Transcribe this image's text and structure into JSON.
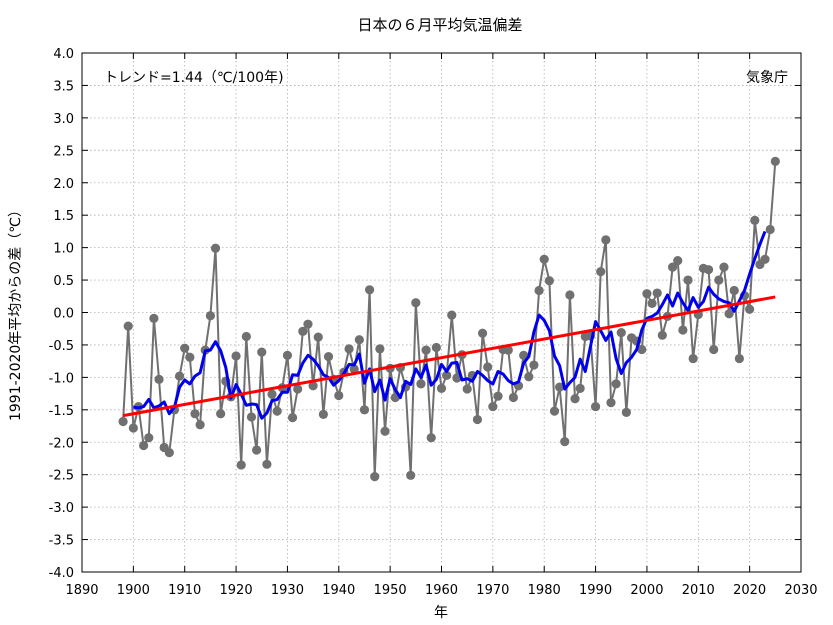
{
  "chart_data": {
    "type": "line",
    "title": "日本の６月平均気温偏差",
    "xlabel": "年",
    "ylabel": "1991-2020年平均からの差（℃）",
    "trend_label": "トレンド=1.44（℃/100年)",
    "source_label": "気象庁",
    "xlim": [
      1890,
      2030
    ],
    "ylim": [
      -4.0,
      4.0
    ],
    "x_ticks": [
      1890,
      1900,
      1910,
      1920,
      1930,
      1940,
      1950,
      1960,
      1970,
      1980,
      1990,
      2000,
      2010,
      2020,
      2030
    ],
    "y_ticks": [
      -4.0,
      -3.5,
      -3.0,
      -2.5,
      -2.0,
      -1.5,
      -1.0,
      -0.5,
      0.0,
      0.5,
      1.0,
      1.5,
      2.0,
      2.5,
      3.0,
      3.5,
      4.0
    ],
    "grid": true,
    "colors": {
      "annual": "#707070",
      "moving_average": "#0000ee",
      "trend": "#ff0000",
      "grid": "#b0b0b0"
    },
    "series": [
      {
        "kind": "annual",
        "x": [
          1898,
          1899,
          1900,
          1901,
          1902,
          1903,
          1904,
          1905,
          1906,
          1907,
          1908,
          1909,
          1910,
          1911,
          1912,
          1913,
          1914,
          1915,
          1916,
          1917,
          1918,
          1919,
          1920,
          1921,
          1922,
          1923,
          1924,
          1925,
          1926,
          1927,
          1928,
          1929,
          1930,
          1931,
          1932,
          1933,
          1934,
          1935,
          1936,
          1937,
          1938,
          1939,
          1940,
          1941,
          1942,
          1943,
          1944,
          1945,
          1946,
          1947,
          1948,
          1949,
          1950,
          1951,
          1952,
          1953,
          1954,
          1955,
          1956,
          1957,
          1958,
          1959,
          1960,
          1961,
          1962,
          1963,
          1964,
          1965,
          1966,
          1967,
          1968,
          1969,
          1970,
          1971,
          1972,
          1973,
          1974,
          1975,
          1976,
          1977,
          1978,
          1979,
          1980,
          1981,
          1982,
          1983,
          1984,
          1985,
          1986,
          1987,
          1988,
          1989,
          1990,
          1991,
          1992,
          1993,
          1994,
          1995,
          1996,
          1997,
          1998,
          1999,
          2000,
          2001,
          2002,
          2003,
          2004,
          2005,
          2006,
          2007,
          2008,
          2009,
          2010,
          2011,
          2012,
          2013,
          2014,
          2015,
          2016,
          2017,
          2018,
          2019,
          2020,
          2021,
          2022,
          2023,
          2024,
          2025
        ],
        "y": [
          -1.68,
          -0.21,
          -1.78,
          -1.45,
          -2.05,
          -1.93,
          -0.09,
          -1.03,
          -2.08,
          -2.16,
          -1.5,
          -0.98,
          -0.55,
          -0.69,
          -1.56,
          -1.73,
          -0.58,
          -0.05,
          0.99,
          -1.56,
          -1.06,
          -1.3,
          -0.67,
          -2.35,
          -0.37,
          -1.61,
          -2.12,
          -0.61,
          -2.34,
          -1.26,
          -1.52,
          -1.16,
          -0.66,
          -1.62,
          -1.18,
          -0.29,
          -0.18,
          -1.13,
          -0.38,
          -1.57,
          -0.68,
          -1.03,
          -1.28,
          -0.92,
          -0.56,
          -0.87,
          -0.42,
          -1.5,
          0.35,
          -2.53,
          -0.56,
          -1.83,
          -0.86,
          -1.31,
          -0.85,
          -1.15,
          -2.51,
          0.15,
          -1.1,
          -0.58,
          -1.93,
          -0.54,
          -1.17,
          -0.97,
          -0.04,
          -1.01,
          -0.65,
          -1.18,
          -0.97,
          -1.65,
          -0.32,
          -0.84,
          -1.45,
          -1.29,
          -0.57,
          -0.58,
          -1.31,
          -1.13,
          -0.66,
          -0.99,
          -0.81,
          0.34,
          0.82,
          0.49,
          -1.52,
          -1.15,
          -1.99,
          0.27,
          -1.33,
          -1.17,
          -0.37,
          -0.36,
          -1.45,
          0.63,
          1.12,
          -1.39,
          -1.1,
          -0.31,
          -1.54,
          -0.39,
          -0.44,
          -0.57,
          0.29,
          0.14,
          0.3,
          -0.35,
          -0.06,
          0.7,
          0.8,
          -0.27,
          0.5,
          -0.71,
          -0.03,
          0.68,
          0.66,
          -0.57,
          0.5,
          0.7,
          -0.02,
          0.34,
          -0.71,
          0.26,
          0.05,
          1.42,
          0.74,
          0.82,
          1.28,
          2.33
        ]
      },
      {
        "kind": "moving_average",
        "x": [
          1900,
          1901,
          1902,
          1903,
          1904,
          1905,
          1906,
          1907,
          1908,
          1909,
          1910,
          1911,
          1912,
          1913,
          1914,
          1915,
          1916,
          1917,
          1918,
          1919,
          1920,
          1921,
          1922,
          1923,
          1924,
          1925,
          1926,
          1927,
          1928,
          1929,
          1930,
          1931,
          1932,
          1933,
          1934,
          1935,
          1936,
          1937,
          1938,
          1939,
          1940,
          1941,
          1942,
          1943,
          1944,
          1945,
          1946,
          1947,
          1948,
          1949,
          1950,
          1951,
          1952,
          1953,
          1954,
          1955,
          1956,
          1957,
          1958,
          1959,
          1960,
          1961,
          1962,
          1963,
          1964,
          1965,
          1966,
          1967,
          1968,
          1969,
          1970,
          1971,
          1972,
          1973,
          1974,
          1975,
          1976,
          1977,
          1978,
          1979,
          1980,
          1981,
          1982,
          1983,
          1984,
          1985,
          1986,
          1987,
          1988,
          1989,
          1990,
          1991,
          1992,
          1993,
          1994,
          1995,
          1996,
          1997,
          1998,
          1999,
          2000,
          2001,
          2002,
          2003,
          2004,
          2005,
          2006,
          2007,
          2008,
          2009,
          2010,
          2011,
          2012,
          2013,
          2014,
          2015,
          2016,
          2017,
          2018,
          2019,
          2020,
          2021,
          2022,
          2023
        ],
        "y": [
          -1.46,
          -1.47,
          -1.45,
          -1.34,
          -1.47,
          -1.44,
          -1.38,
          -1.56,
          -1.46,
          -1.15,
          -1.04,
          -1.1,
          -0.98,
          -0.93,
          -0.59,
          -0.58,
          -0.45,
          -0.59,
          -0.85,
          -1.32,
          -1.11,
          -1.26,
          -1.43,
          -1.41,
          -1.42,
          -1.63,
          -1.55,
          -1.36,
          -1.34,
          -1.23,
          -1.23,
          -0.96,
          -0.97,
          -0.78,
          -0.66,
          -0.72,
          -0.82,
          -0.96,
          -1.0,
          -1.12,
          -1.05,
          -0.94,
          -0.8,
          -0.81,
          -0.64,
          -1.09,
          -0.87,
          -1.22,
          -1.04,
          -1.35,
          -1.02,
          -1.19,
          -1.31,
          -1.06,
          -1.11,
          -0.87,
          -1.0,
          -0.81,
          -1.12,
          -1.03,
          -0.8,
          -0.91,
          -0.78,
          -0.77,
          -1.04,
          -1.02,
          -1.06,
          -0.91,
          -0.97,
          -1.05,
          -1.1,
          -0.91,
          -0.95,
          -1.05,
          -1.1,
          -1.07,
          -0.78,
          -0.68,
          -0.3,
          -0.04,
          -0.12,
          -0.28,
          -0.67,
          -0.82,
          -1.18,
          -1.08,
          -1.0,
          -0.72,
          -0.91,
          -0.53,
          -0.14,
          -0.28,
          -0.43,
          -0.3,
          -0.71,
          -0.94,
          -0.77,
          -0.69,
          -0.57,
          -0.27,
          -0.09,
          -0.06,
          -0.01,
          0.12,
          0.27,
          0.1,
          0.3,
          0.15,
          0.03,
          0.23,
          0.08,
          0.17,
          0.39,
          0.28,
          0.21,
          0.17,
          0.15,
          0.02,
          0.18,
          0.34,
          0.59,
          0.83,
          1.05,
          1.25
        ]
      },
      {
        "kind": "trend",
        "x": [
          1898,
          2025
        ],
        "y": [
          -1.59,
          0.24
        ]
      }
    ]
  }
}
